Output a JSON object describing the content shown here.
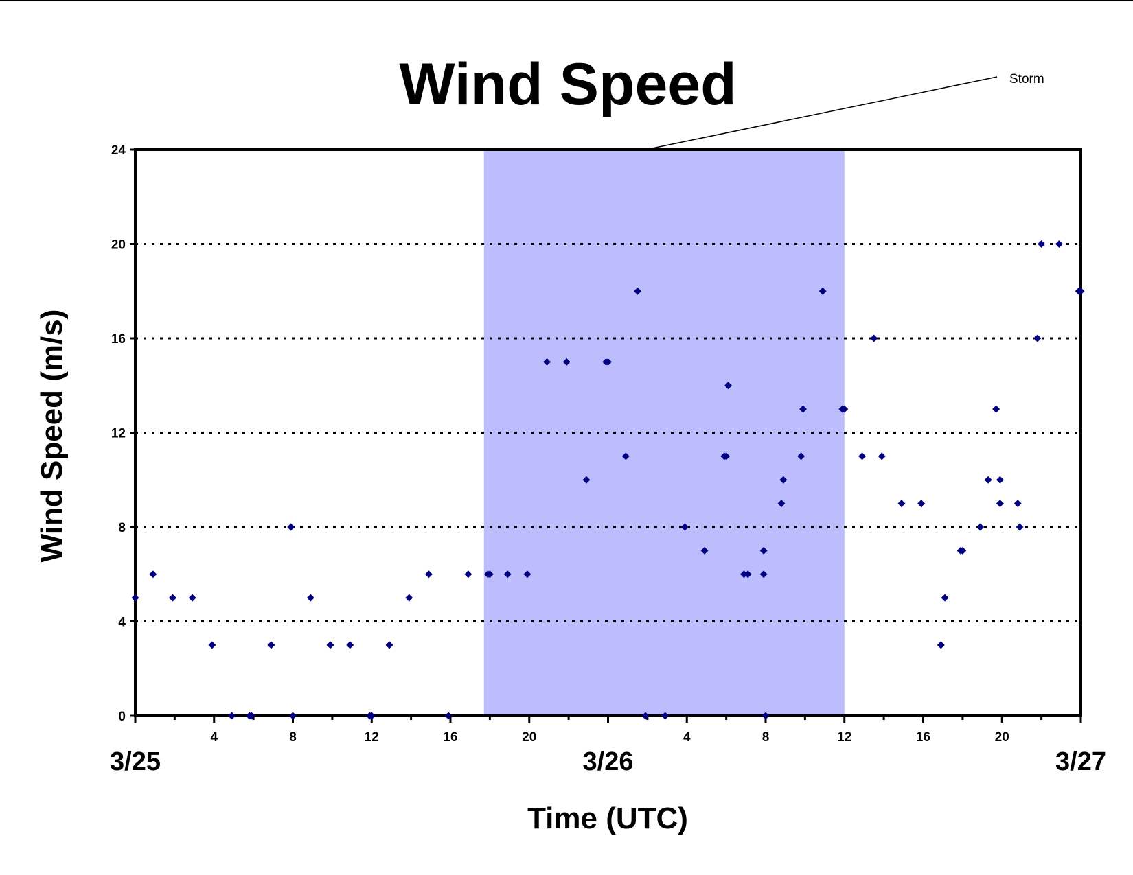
{
  "chart_data": {
    "type": "scatter",
    "title": "Wind Speed",
    "xlabel": "Time (UTC)",
    "ylabel": "Wind Speed (m/s)",
    "xlim": [
      0,
      48
    ],
    "ylim": [
      0,
      24
    ],
    "yticks": [
      0,
      4,
      8,
      12,
      16,
      20,
      24
    ],
    "xticks": [
      {
        "hour": 4,
        "label": "4"
      },
      {
        "hour": 8,
        "label": "8"
      },
      {
        "hour": 12,
        "label": "12"
      },
      {
        "hour": 16,
        "label": "16"
      },
      {
        "hour": 20,
        "label": "20"
      },
      {
        "hour": 28,
        "label": "4"
      },
      {
        "hour": 32,
        "label": "8"
      },
      {
        "hour": 36,
        "label": "12"
      },
      {
        "hour": 40,
        "label": "16"
      },
      {
        "hour": 44,
        "label": "20"
      }
    ],
    "date_labels": [
      {
        "hour": 0,
        "label": "3/25"
      },
      {
        "hour": 24,
        "label": "3/26"
      },
      {
        "hour": 48,
        "label": "3/27"
      }
    ],
    "grid": {
      "horizontal_dotted": [
        4,
        8,
        12,
        16,
        20
      ]
    },
    "storm_band": {
      "label": "Storm",
      "x_start": 17.7,
      "x_end": 36.0,
      "color": "#bdbdfd"
    },
    "marker_color": "#000080",
    "series": [
      {
        "points": [
          [
            0,
            5
          ],
          [
            0.9,
            6
          ],
          [
            1.9,
            5
          ],
          [
            2.9,
            5
          ],
          [
            3.9,
            3
          ],
          [
            4.9,
            0
          ],
          [
            5.8,
            0
          ],
          [
            5.9,
            0
          ],
          [
            6.9,
            3
          ],
          [
            7.9,
            8
          ],
          [
            8.0,
            0
          ],
          [
            8.9,
            5
          ],
          [
            9.9,
            3
          ],
          [
            10.9,
            3
          ],
          [
            11.9,
            0
          ],
          [
            12.0,
            0
          ],
          [
            12.9,
            3
          ],
          [
            13.9,
            5
          ],
          [
            14.9,
            6
          ],
          [
            15.9,
            0
          ],
          [
            16.9,
            6
          ],
          [
            17.9,
            6
          ],
          [
            18.0,
            6
          ],
          [
            18.9,
            6
          ],
          [
            19.9,
            6
          ],
          [
            20.9,
            15
          ],
          [
            21.9,
            15
          ],
          [
            22.9,
            10
          ],
          [
            23.9,
            15
          ],
          [
            24.0,
            15
          ],
          [
            24.9,
            11
          ],
          [
            25.5,
            18
          ],
          [
            25.9,
            0
          ],
          [
            26.9,
            0
          ],
          [
            27.9,
            8
          ],
          [
            28.9,
            7
          ],
          [
            29.9,
            11
          ],
          [
            30.0,
            11
          ],
          [
            30.1,
            14
          ],
          [
            30.9,
            6
          ],
          [
            31.1,
            6
          ],
          [
            31.9,
            6
          ],
          [
            31.9,
            7
          ],
          [
            32.0,
            0
          ],
          [
            32.8,
            9
          ],
          [
            32.9,
            10
          ],
          [
            33.8,
            11
          ],
          [
            33.9,
            13
          ],
          [
            34.9,
            18
          ],
          [
            35.9,
            13
          ],
          [
            36.0,
            13
          ],
          [
            36.9,
            11
          ],
          [
            37.5,
            16
          ],
          [
            37.9,
            11
          ],
          [
            38.9,
            9
          ],
          [
            39.9,
            9
          ],
          [
            40.9,
            3
          ],
          [
            41.1,
            5
          ],
          [
            41.9,
            7
          ],
          [
            42.0,
            7
          ],
          [
            42.9,
            8
          ],
          [
            43.3,
            10
          ],
          [
            43.7,
            13
          ],
          [
            43.9,
            9
          ],
          [
            43.9,
            10
          ],
          [
            44.8,
            9
          ],
          [
            44.9,
            8
          ],
          [
            45.8,
            16
          ],
          [
            46.0,
            20
          ],
          [
            46.9,
            20
          ],
          [
            47.9,
            18
          ],
          [
            48.0,
            18
          ]
        ]
      }
    ]
  }
}
